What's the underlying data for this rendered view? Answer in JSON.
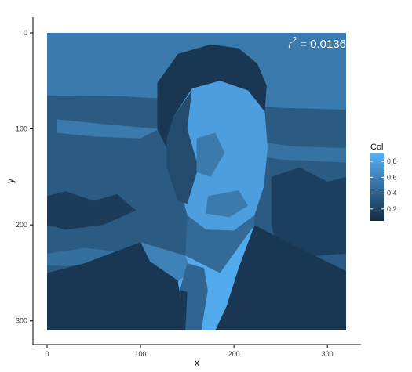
{
  "chart_data": {
    "type": "heatmap",
    "description_note": "",
    "xlabel": "x",
    "ylabel": "y",
    "xlim": [
      0,
      320
    ],
    "ylim": [
      0,
      310
    ],
    "y_reversed": true,
    "x_ticks": [
      0,
      100,
      200,
      300
    ],
    "y_ticks": [
      0,
      100,
      200,
      300
    ],
    "annotation": {
      "prefix": "r",
      "superscript": "2",
      "suffix": " = 0.0136"
    },
    "legend": {
      "title": "Col",
      "position": "right",
      "range": [
        0.05,
        0.9
      ],
      "ticks": [
        "0.2",
        "0.4",
        "0.6",
        "0.8"
      ],
      "tick_values": [
        0.2,
        0.4,
        0.6,
        0.8
      ],
      "color_low": "#132b43",
      "color_high": "#56b1f7"
    },
    "regions": [
      {
        "id": "background",
        "value": 0.55,
        "pts": [
          [
            0,
            0
          ],
          [
            320,
            0
          ],
          [
            320,
            310
          ],
          [
            0,
            310
          ]
        ]
      },
      {
        "id": "city-band",
        "value": 0.35,
        "pts": [
          [
            0,
            65
          ],
          [
            80,
            66
          ],
          [
            150,
            70
          ],
          [
            250,
            78
          ],
          [
            320,
            80
          ],
          [
            320,
            250
          ],
          [
            0,
            250
          ]
        ]
      },
      {
        "id": "city-dark-1",
        "value": 0.15,
        "pts": [
          [
            0,
            170
          ],
          [
            20,
            165
          ],
          [
            50,
            175
          ],
          [
            75,
            168
          ],
          [
            95,
            185
          ],
          [
            60,
            200
          ],
          [
            20,
            205
          ],
          [
            0,
            200
          ]
        ]
      },
      {
        "id": "city-dark-2",
        "value": 0.18,
        "pts": [
          [
            240,
            150
          ],
          [
            270,
            140
          ],
          [
            300,
            155
          ],
          [
            320,
            150
          ],
          [
            320,
            230
          ],
          [
            250,
            235
          ],
          [
            240,
            200
          ]
        ]
      },
      {
        "id": "city-light-1",
        "value": 0.55,
        "pts": [
          [
            10,
            90
          ],
          [
            60,
            95
          ],
          [
            120,
            100
          ],
          [
            100,
            110
          ],
          [
            50,
            108
          ],
          [
            10,
            104
          ]
        ]
      },
      {
        "id": "city-light-2",
        "value": 0.5,
        "pts": [
          [
            205,
            110
          ],
          [
            260,
            118
          ],
          [
            320,
            120
          ],
          [
            320,
            135
          ],
          [
            250,
            132
          ],
          [
            205,
            125
          ]
        ]
      },
      {
        "id": "city-light-3",
        "value": 0.48,
        "pts": [
          [
            0,
            230
          ],
          [
            40,
            224
          ],
          [
            80,
            228
          ],
          [
            60,
            240
          ],
          [
            20,
            243
          ],
          [
            0,
            242
          ]
        ]
      },
      {
        "id": "hair",
        "value": 0.12,
        "pts": [
          [
            118,
            52
          ],
          [
            140,
            22
          ],
          [
            175,
            12
          ],
          [
            205,
            16
          ],
          [
            225,
            32
          ],
          [
            235,
            55
          ],
          [
            233,
            82
          ],
          [
            215,
            60
          ],
          [
            185,
            50
          ],
          [
            155,
            58
          ],
          [
            135,
            88
          ],
          [
            128,
            120
          ],
          [
            118,
            100
          ]
        ]
      },
      {
        "id": "face",
        "value": 0.78,
        "pts": [
          [
            135,
            88
          ],
          [
            155,
            58
          ],
          [
            185,
            50
          ],
          [
            215,
            60
          ],
          [
            233,
            82
          ],
          [
            236,
            120
          ],
          [
            232,
            160
          ],
          [
            222,
            190
          ],
          [
            200,
            206
          ],
          [
            170,
            205
          ],
          [
            150,
            190
          ],
          [
            142,
            160
          ],
          [
            134,
            120
          ]
        ]
      },
      {
        "id": "face-shadow",
        "value": 0.25,
        "pts": [
          [
            135,
            88
          ],
          [
            155,
            60
          ],
          [
            150,
            100
          ],
          [
            162,
            140
          ],
          [
            150,
            178
          ],
          [
            140,
            175
          ],
          [
            128,
            140
          ],
          [
            128,
            110
          ]
        ]
      },
      {
        "id": "face-mid-1",
        "value": 0.55,
        "pts": [
          [
            160,
            110
          ],
          [
            180,
            104
          ],
          [
            190,
            125
          ],
          [
            175,
            150
          ],
          [
            160,
            145
          ]
        ]
      },
      {
        "id": "face-mid-2",
        "value": 0.55,
        "pts": [
          [
            172,
            170
          ],
          [
            205,
            164
          ],
          [
            215,
            180
          ],
          [
            195,
            192
          ],
          [
            170,
            188
          ]
        ]
      },
      {
        "id": "neck",
        "value": 0.45,
        "pts": [
          [
            150,
            190
          ],
          [
            170,
            205
          ],
          [
            200,
            206
          ],
          [
            222,
            190
          ],
          [
            222,
            222
          ],
          [
            185,
            250
          ],
          [
            148,
            232
          ]
        ]
      },
      {
        "id": "suit",
        "value": 0.12,
        "pts": [
          [
            0,
            310
          ],
          [
            0,
            250
          ],
          [
            40,
            240
          ],
          [
            100,
            218
          ],
          [
            148,
            232
          ],
          [
            160,
            310
          ]
        ]
      },
      {
        "id": "suit-right",
        "value": 0.12,
        "pts": [
          [
            222,
            200
          ],
          [
            265,
            222
          ],
          [
            320,
            248
          ],
          [
            320,
            310
          ],
          [
            168,
            310
          ],
          [
            205,
            245
          ]
        ]
      },
      {
        "id": "shirt",
        "value": 0.85,
        "pts": [
          [
            148,
            232
          ],
          [
            185,
            250
          ],
          [
            222,
            200
          ],
          [
            205,
            245
          ],
          [
            192,
            285
          ],
          [
            180,
            310
          ],
          [
            150,
            310
          ],
          [
            140,
            260
          ]
        ]
      },
      {
        "id": "lapel",
        "value": 0.6,
        "pts": [
          [
            100,
            218
          ],
          [
            148,
            232
          ],
          [
            155,
            250
          ],
          [
            140,
            258
          ],
          [
            110,
            238
          ]
        ]
      },
      {
        "id": "tie",
        "value": 0.42,
        "pts": [
          [
            150,
            240
          ],
          [
            168,
            245
          ],
          [
            172,
            268
          ],
          [
            165,
            310
          ],
          [
            143,
            310
          ],
          [
            142,
            268
          ]
        ]
      },
      {
        "id": "tie-dark",
        "value": 0.12,
        "pts": [
          [
            143,
            268
          ],
          [
            150,
            270
          ],
          [
            148,
            310
          ],
          [
            140,
            310
          ]
        ]
      }
    ]
  }
}
